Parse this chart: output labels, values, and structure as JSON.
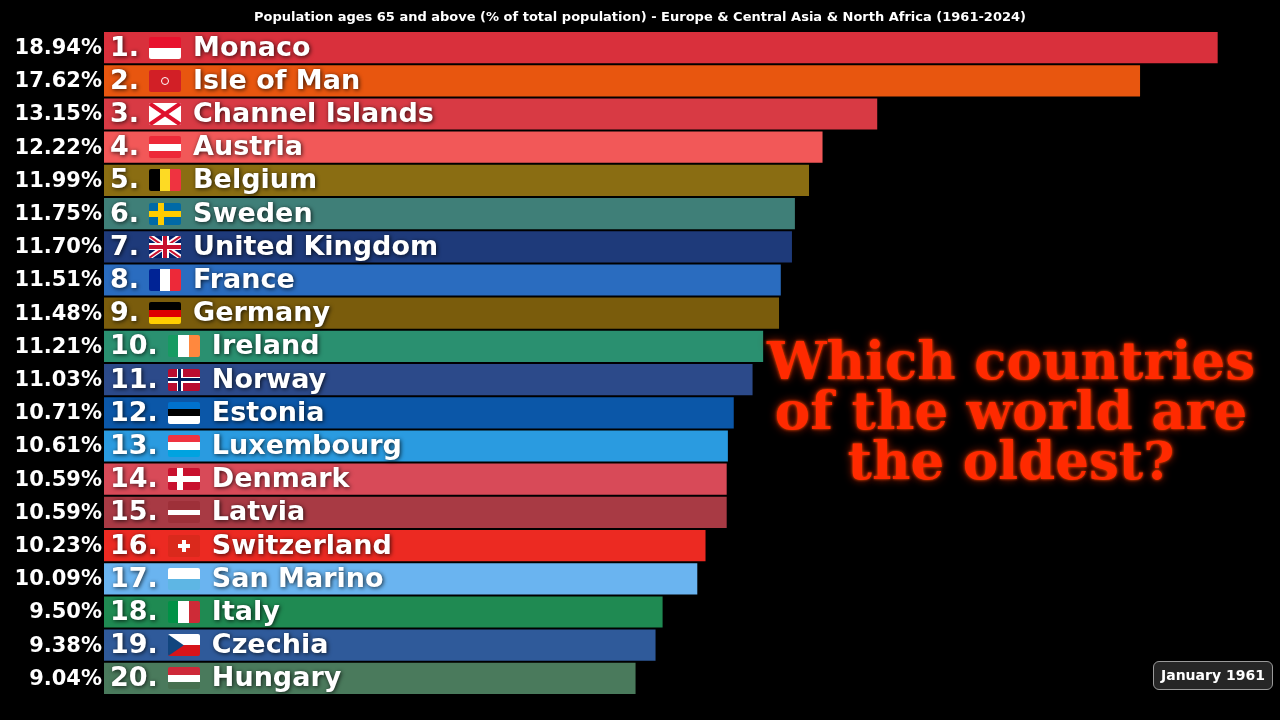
{
  "chart_data": {
    "type": "bar",
    "orientation": "horizontal",
    "title": "Population ages 65 and above (% of total population) - Europe & Central Asia & North Africa (1961-2024)",
    "categories": [
      "1. Monaco",
      "2. Isle of Man",
      "3. Channel Islands",
      "4. Austria",
      "5. Belgium",
      "6. Sweden",
      "7. United Kingdom",
      "8. France",
      "9. Germany",
      "10. Ireland",
      "11. Norway",
      "12. Estonia",
      "13. Luxembourg",
      "14. Denmark",
      "15. Latvia",
      "16. Switzerland",
      "17. San Marino",
      "18. Italy",
      "19. Czechia",
      "20. Hungary"
    ],
    "values": [
      18.94,
      17.62,
      13.15,
      12.22,
      11.99,
      11.75,
      11.7,
      11.51,
      11.48,
      11.21,
      11.03,
      10.71,
      10.61,
      10.59,
      10.59,
      10.23,
      10.09,
      9.5,
      9.38,
      9.04
    ],
    "value_labels": [
      "18.94%",
      "17.62%",
      "13.15%",
      "12.22%",
      "11.99%",
      "11.75%",
      "11.70%",
      "11.51%",
      "11.48%",
      "11.21%",
      "11.03%",
      "10.71%",
      "10.61%",
      "10.59%",
      "10.59%",
      "10.23%",
      "10.09%",
      "9.50%",
      "9.38%",
      "9.04%"
    ],
    "colors": [
      "#d9303c",
      "#e8560f",
      "#d83a44",
      "#f25858",
      "#8a6d12",
      "#3f7f78",
      "#1e3a7a",
      "#2a6cbf",
      "#7a5c0c",
      "#2a9070",
      "#2c4a8a",
      "#0b57a8",
      "#2a9be0",
      "#d84a58",
      "#a83a44",
      "#ec2a22",
      "#6ab4f0",
      "#1f8a52",
      "#2f5a9a",
      "#4a7a5c"
    ],
    "tick_labels": "y",
    "annotations": [
      "Which countries of the world are the oldest?",
      "January 1961"
    ]
  }
}
